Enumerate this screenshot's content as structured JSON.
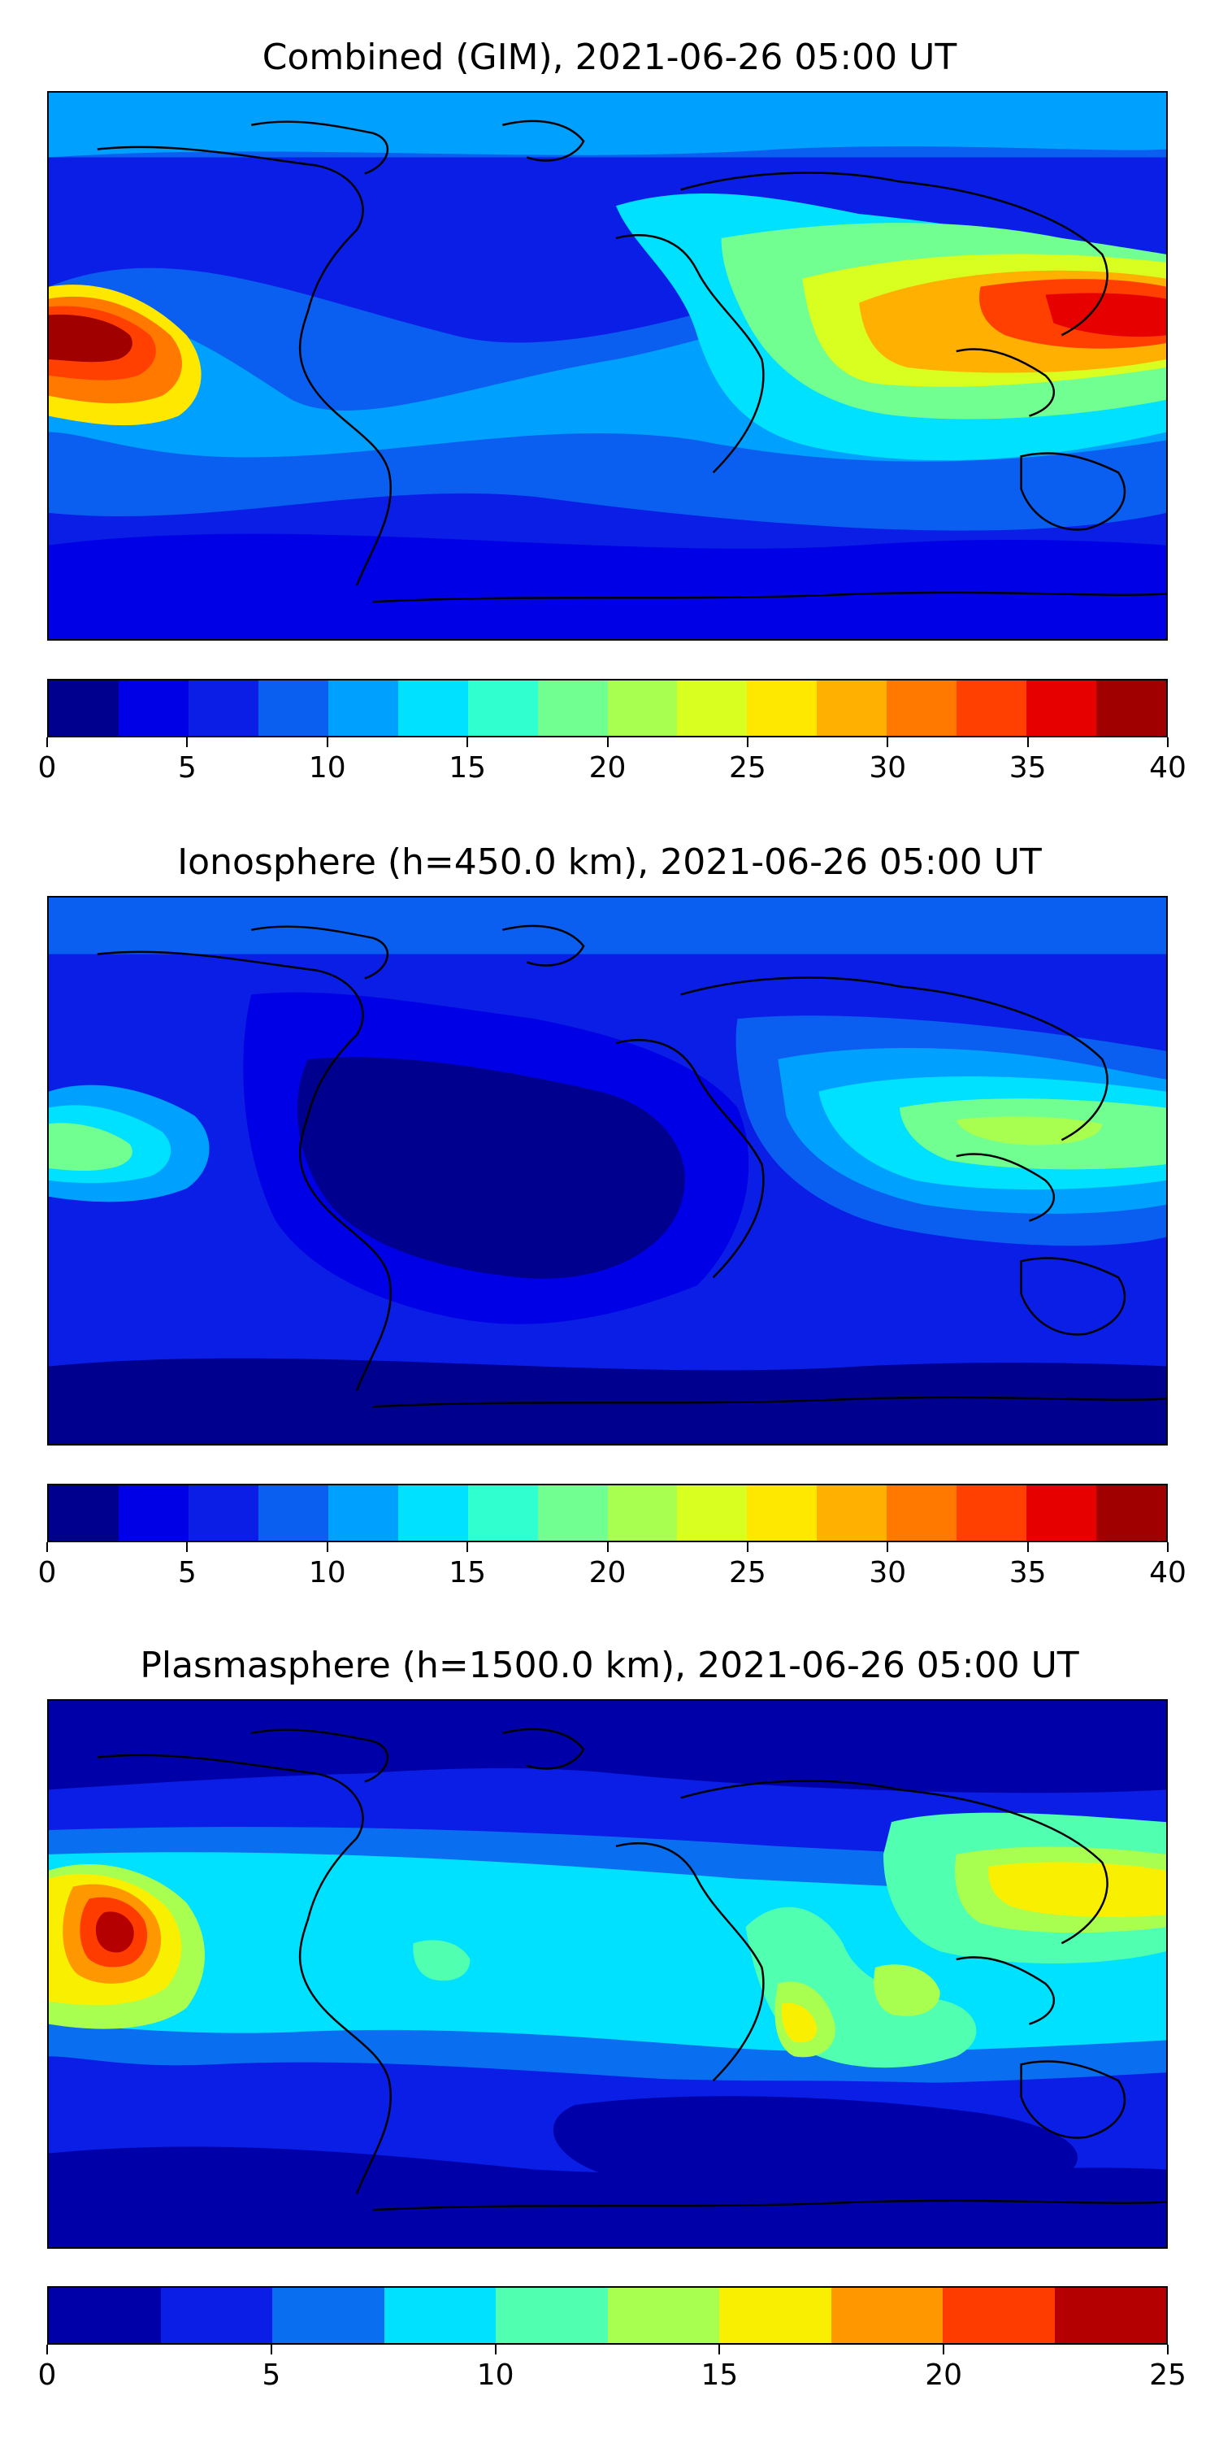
{
  "panels": [
    {
      "title": "Combined (GIM), 2021-06-26 05:00 UT",
      "colorbar": {
        "min": 0,
        "max": 40,
        "colors": [
          "#00008f",
          "#0000e6",
          "#0a1ee6",
          "#0a5ef0",
          "#00a0ff",
          "#00e0ff",
          "#30ffd0",
          "#70ff90",
          "#a8ff50",
          "#d8ff20",
          "#ffe800",
          "#ffb000",
          "#ff7800",
          "#ff4000",
          "#e60000",
          "#a00000"
        ],
        "ticks": [
          "0",
          "5",
          "10",
          "15",
          "20",
          "25",
          "30",
          "35",
          "40"
        ]
      }
    },
    {
      "title": "Ionosphere  (h=450.0 km), 2021-06-26 05:00 UT",
      "colorbar": {
        "min": 0,
        "max": 40,
        "colors": [
          "#00008f",
          "#0000e6",
          "#0a1ee6",
          "#0a5ef0",
          "#00a0ff",
          "#00e0ff",
          "#30ffd0",
          "#70ff90",
          "#a8ff50",
          "#d8ff20",
          "#ffe800",
          "#ffb000",
          "#ff7800",
          "#ff4000",
          "#e60000",
          "#a00000"
        ],
        "ticks": [
          "0",
          "5",
          "10",
          "15",
          "20",
          "25",
          "30",
          "35",
          "40"
        ]
      }
    },
    {
      "title": "Plasmasphere (h=1500.0 km), 2021-06-26 05:00 UT",
      "colorbar": {
        "min": 0,
        "max": 25,
        "colors": [
          "#0000a8",
          "#0a1ee6",
          "#0a6ef0",
          "#00e0ff",
          "#50ffb0",
          "#a8ff50",
          "#f8f000",
          "#ff9800",
          "#ff3c00",
          "#b40000"
        ],
        "ticks": [
          "0",
          "5",
          "10",
          "15",
          "20",
          "25"
        ]
      }
    }
  ]
}
